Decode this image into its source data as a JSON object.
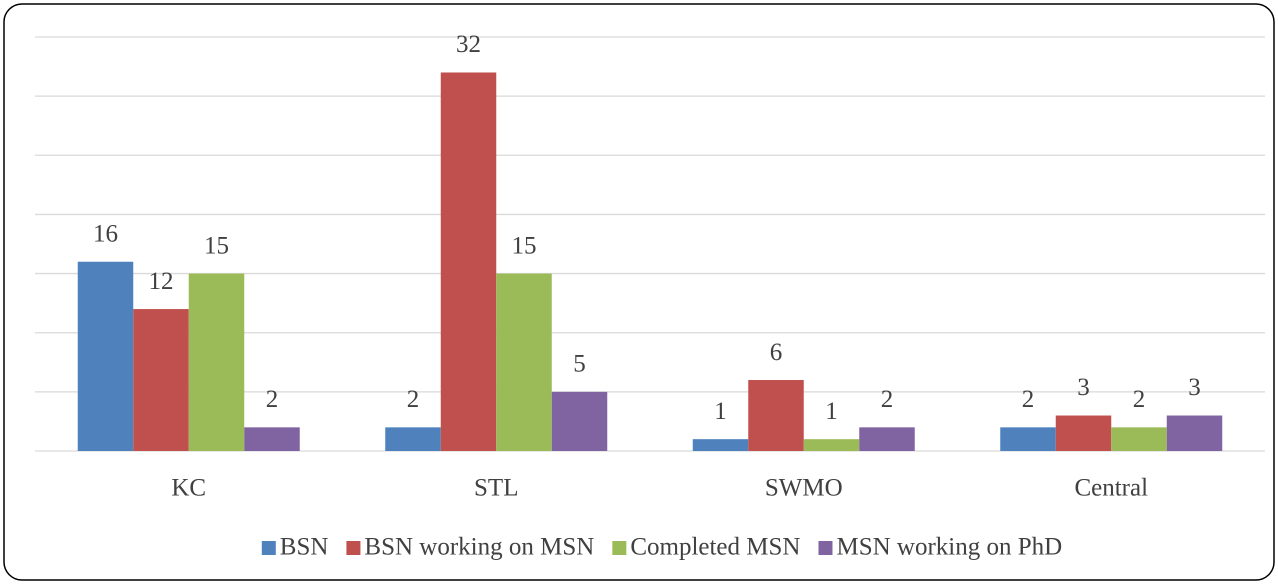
{
  "chart_data": {
    "type": "bar",
    "categories": [
      "KC",
      "STL",
      "SWMO",
      "Central"
    ],
    "series": [
      {
        "name": "BSN",
        "color": "#4f81bd",
        "values": [
          16,
          2,
          1,
          2
        ]
      },
      {
        "name": "BSN working on MSN",
        "color": "#c0504d",
        "values": [
          12,
          32,
          6,
          3
        ]
      },
      {
        "name": "Completed MSN",
        "color": "#9bbb59",
        "values": [
          15,
          15,
          1,
          2
        ]
      },
      {
        "name": "MSN working on PhD",
        "color": "#8064a2",
        "values": [
          2,
          5,
          2,
          3
        ]
      }
    ],
    "ylim": [
      0,
      35
    ],
    "yticks": [
      0,
      5,
      10,
      15,
      20,
      25,
      30,
      35
    ],
    "grid": true,
    "legend": "bottom"
  }
}
